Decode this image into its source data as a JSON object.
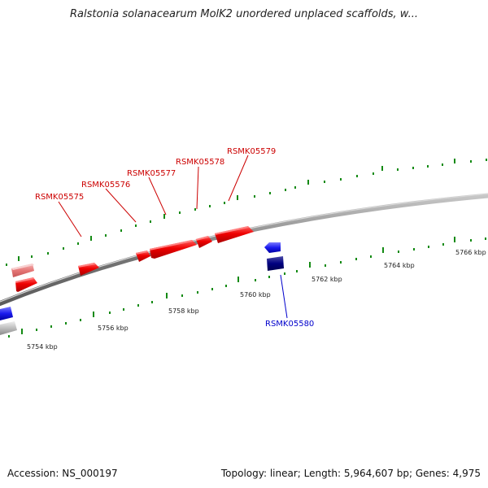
{
  "title": "Ralstonia solanacearum MolK2 unordered unplaced scaffolds, w...",
  "footer": {
    "accession": "Accession: NS_000197",
    "summary": "Topology: linear; Length: 5,964,607 bp; Genes: 4,975"
  },
  "scale_labels": [
    "5754 kbp",
    "5756 kbp",
    "5758 kbp",
    "5760 kbp",
    "5762 kbp",
    "5764 kbp",
    "5766 kbp"
  ],
  "genes": {
    "forward": [
      "RSMK05575",
      "RSMK05576",
      "RSMK05577",
      "RSMK05578",
      "RSMK05579"
    ],
    "reverse": [
      "RSMK05580"
    ]
  },
  "colors": {
    "forward_gene": "#e60000",
    "forward_gene_faded": "#e87a7a",
    "reverse_gene": "#1a1aee",
    "reverse_gene_dark": "#000080",
    "tick": "#138a13",
    "backbone": "#808080"
  }
}
